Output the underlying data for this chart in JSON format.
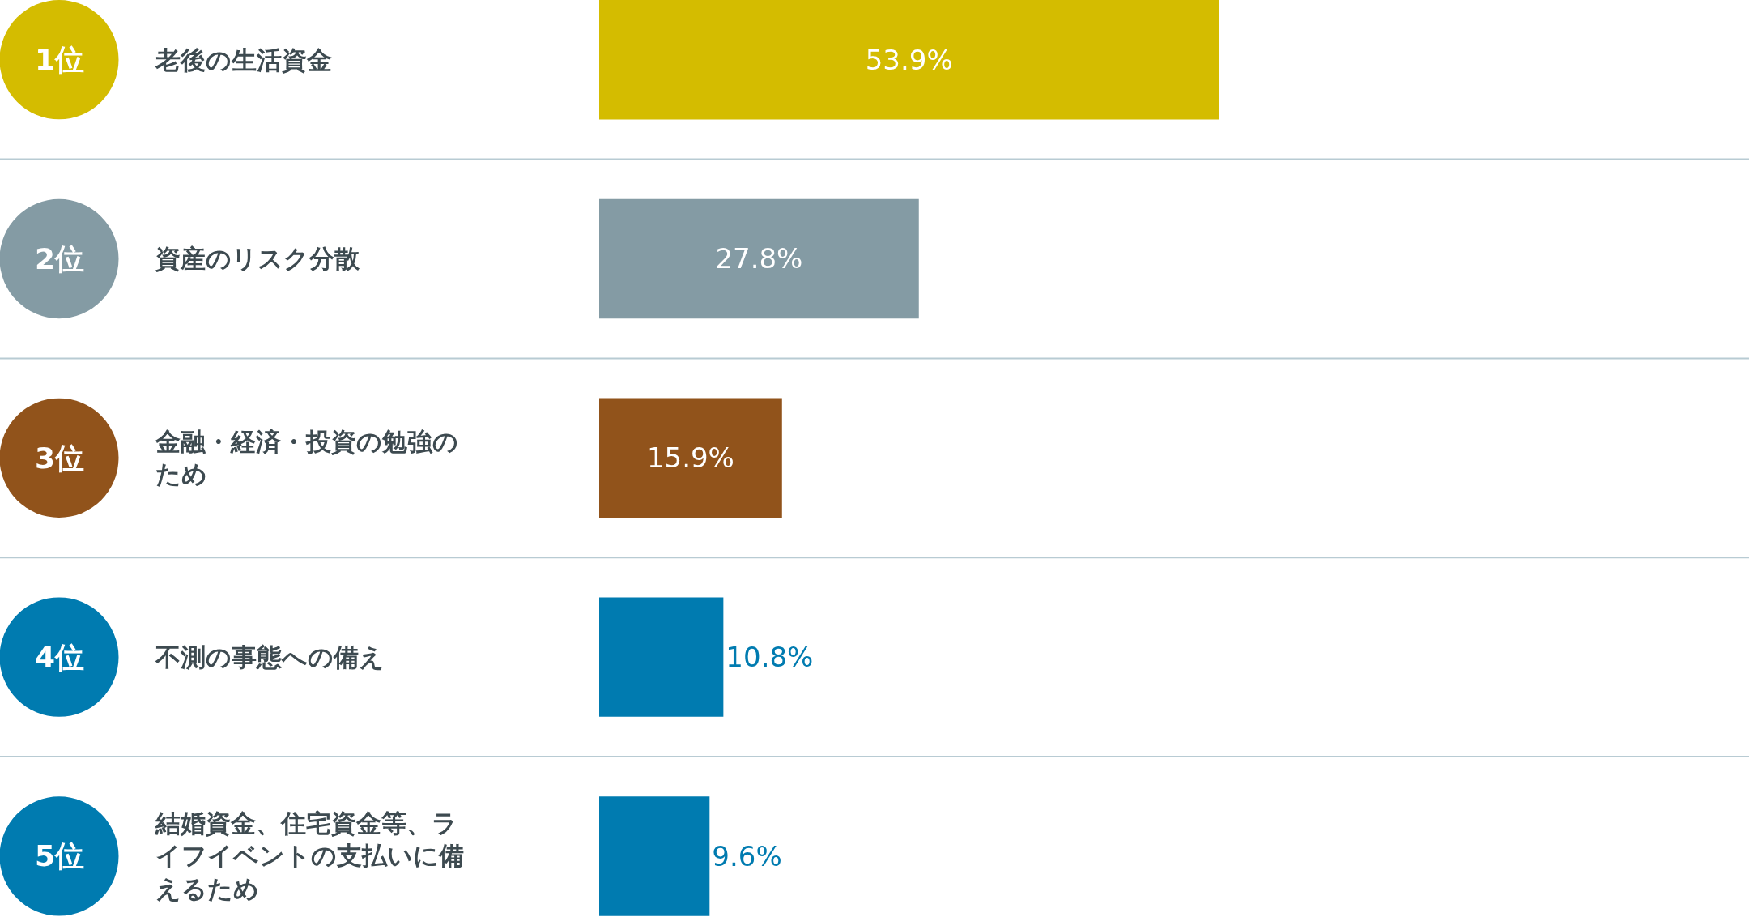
{
  "chart_data": {
    "type": "bar",
    "orientation": "horizontal",
    "categories": [
      "老後の生活資金",
      "資産のリスク分散",
      "金融・経済・投資の勉強のため",
      "不測の事態への備え",
      "結婚資金、住宅資金等、ライフイベントの支払いに備えるため"
    ],
    "values": [
      53.9,
      27.8,
      15.9,
      10.8,
      9.6
    ],
    "colors": [
      "#d4bc00",
      "#849ba4",
      "#91531b",
      "#007bb0",
      "#007bb0"
    ],
    "value_labels": [
      "53.9%",
      "27.8%",
      "15.9%",
      "10.8%",
      "9.6%"
    ],
    "annotations": [
      "1位",
      "2位",
      "3位",
      "4位",
      "5位"
    ],
    "xlim": [
      0,
      100
    ],
    "tick_labels": "y",
    "grid": "y"
  }
}
